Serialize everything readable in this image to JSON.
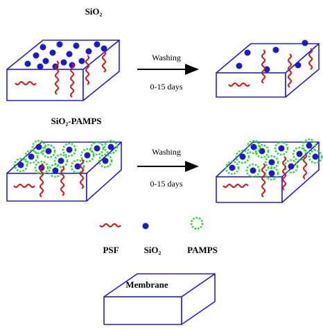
{
  "panels": [
    {
      "title": "SiO₂",
      "arrow_label": "Washing",
      "arrow_sublabel": "0-15 days"
    },
    {
      "title": "SiO₂-PAMPS",
      "arrow_label": "Washing",
      "arrow_sublabel": "0-15 days"
    }
  ],
  "legend": [
    {
      "label": "PSF"
    },
    {
      "label": "SiO₂"
    },
    {
      "label": "PAMPS"
    }
  ],
  "membrane_label": "Membrane"
}
